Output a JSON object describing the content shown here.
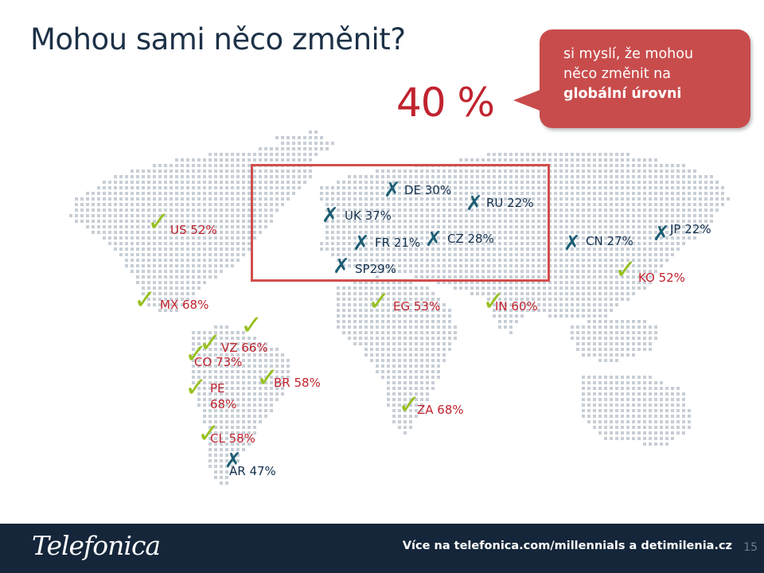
{
  "title": "Mohou sami něco změnit?",
  "headline_percent": "40 %",
  "callout": {
    "line1": "si myslí, že mohou",
    "line2": "něco změnit na",
    "line3": "globální úrovni"
  },
  "countries": [
    {
      "code": "US",
      "label": "US 52%",
      "value": 52,
      "status": "yes"
    },
    {
      "code": "MX",
      "label": "MX 68%",
      "value": 68,
      "status": "yes"
    },
    {
      "code": "VZ",
      "label": "VZ 66%",
      "value": 66,
      "status": "yes"
    },
    {
      "code": "CO",
      "label": "CO 73%",
      "value": 73,
      "status": "yes"
    },
    {
      "code": "PE",
      "label": "PE 68%",
      "value": 68,
      "status": "yes"
    },
    {
      "code": "BR",
      "label": "BR 58%",
      "value": 58,
      "status": "yes"
    },
    {
      "code": "CL",
      "label": "CL 58%",
      "value": 58,
      "status": "yes"
    },
    {
      "code": "AR",
      "label": "AR 47%",
      "value": 47,
      "status": "no"
    },
    {
      "code": "UK",
      "label": "UK 37%",
      "value": 37,
      "status": "no"
    },
    {
      "code": "DE",
      "label": "DE 30%",
      "value": 30,
      "status": "no"
    },
    {
      "code": "RU",
      "label": "RU 22%",
      "value": 22,
      "status": "no"
    },
    {
      "code": "FR",
      "label": "FR 21%",
      "value": 21,
      "status": "no"
    },
    {
      "code": "CZ",
      "label": "CZ 28%",
      "value": 28,
      "status": "no"
    },
    {
      "code": "SP",
      "label": "SP29%",
      "value": 29,
      "status": "no"
    },
    {
      "code": "CN",
      "label": "CN 27%",
      "value": 27,
      "status": "no"
    },
    {
      "code": "JP",
      "label": "JP 22%",
      "value": 22,
      "status": "no"
    },
    {
      "code": "KO",
      "label": "KO 52%",
      "value": 52,
      "status": "yes"
    },
    {
      "code": "EG",
      "label": "EG 53%",
      "value": 53,
      "status": "yes"
    },
    {
      "code": "IN",
      "label": "IN 60%",
      "value": 60,
      "status": "yes"
    },
    {
      "code": "ZA",
      "label": "ZA 68%",
      "value": 68,
      "status": "yes"
    }
  ],
  "extra_checkmark": true,
  "footer": {
    "logo": "Telefonica",
    "link_text": "Více na telefonica.com/millennials a detimilenia.cz",
    "page_number": "15"
  },
  "colors": {
    "title": "#1d3147",
    "accent_red": "#c0232e",
    "callout_bg": "#c94c4c",
    "check": "#97c021",
    "cross": "#1d5e74",
    "map_dot": "#c7ced6",
    "footer_bg": "#15263a"
  }
}
